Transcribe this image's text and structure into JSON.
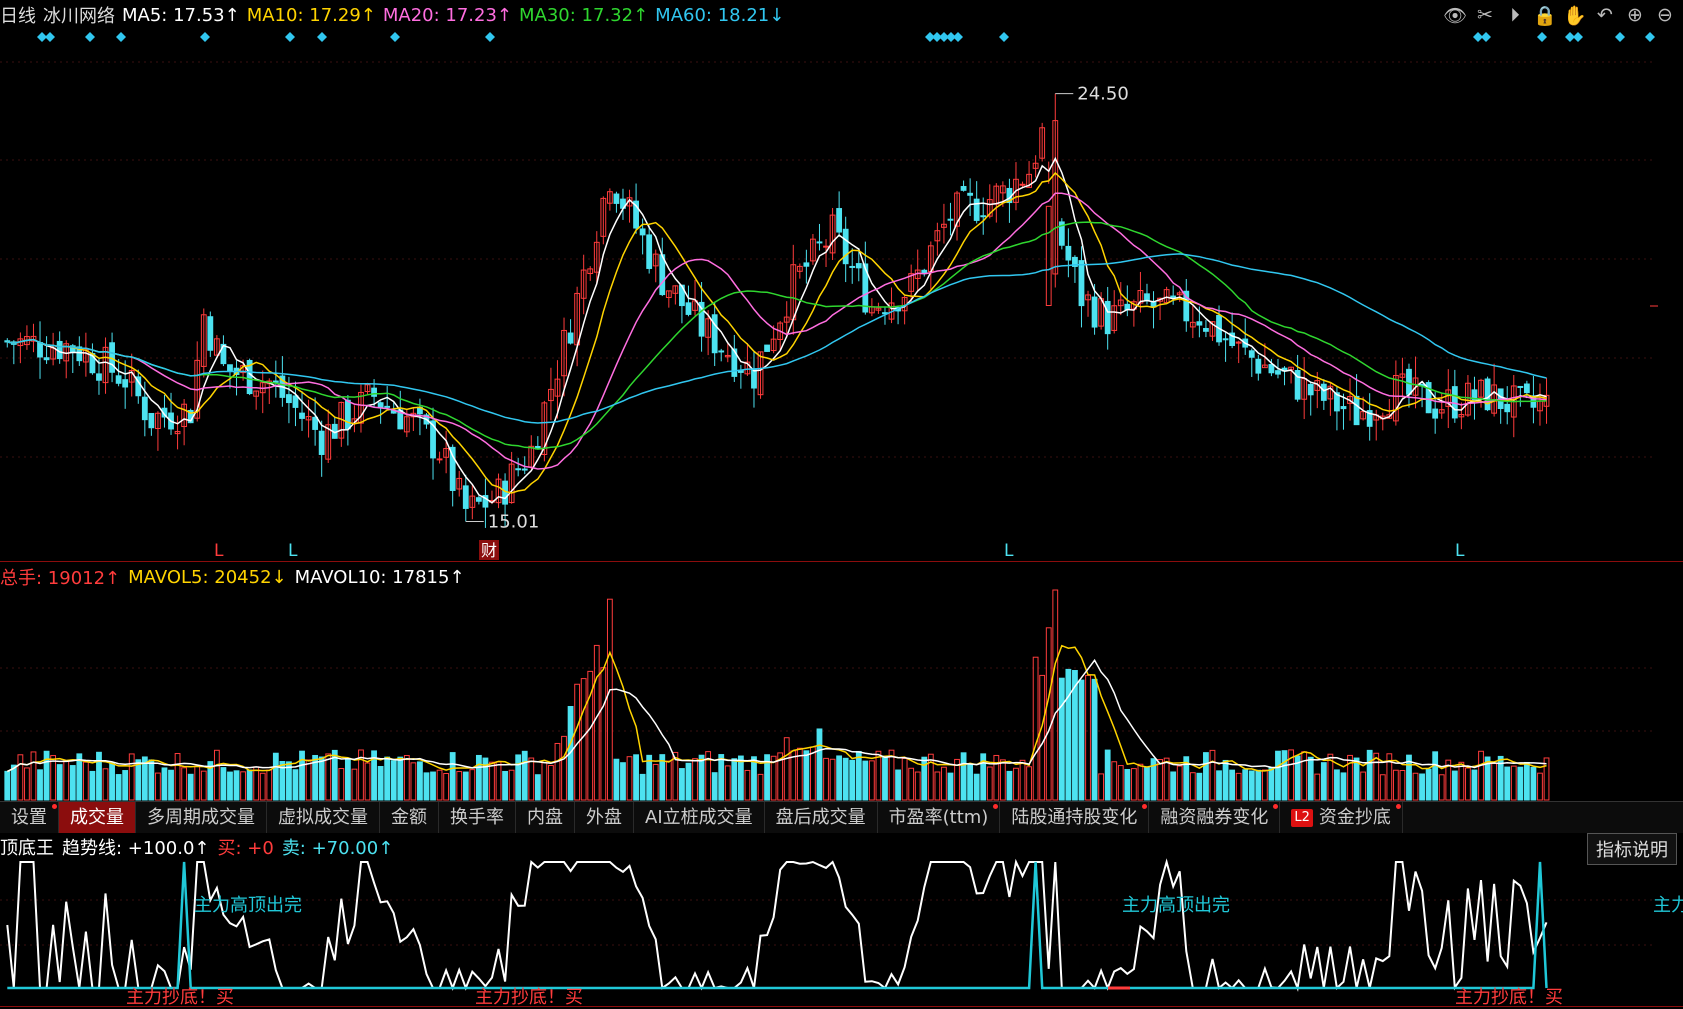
{
  "header": {
    "period": "日线",
    "stock_name": "冰川网络",
    "ma": [
      {
        "label": "MA5: 17.53↑",
        "color": "#ffffff"
      },
      {
        "label": "MA10: 17.29↑",
        "color": "#ffd400"
      },
      {
        "label": "MA20: 17.23↑",
        "color": "#ff6ee0"
      },
      {
        "label": "MA30: 17.32↑",
        "color": "#2fd62f"
      },
      {
        "label": "MA60: 18.21↓",
        "color": "#31c7f0"
      }
    ]
  },
  "toolbar_icons": [
    "eye-icon",
    "scissors-icon",
    "play-icon",
    "lock-icon",
    "hand-icon",
    "undo-icon",
    "zoom-in-icon",
    "zoom-out-icon"
  ],
  "toolbar_glyphs": [
    "👁",
    "✂",
    "⏵",
    "🔒",
    "✋",
    "↶",
    "⊕",
    "⊖"
  ],
  "colors": {
    "up": "#ff3c3c",
    "down": "#4de2f0",
    "panel_border": "#8b0d0d",
    "white": "#ffffff",
    "yellow": "#ffd400"
  },
  "price_chart": {
    "high_label": "24.50",
    "low_label": "15.01",
    "marker_L": "L",
    "marker_cai": "财"
  },
  "volume": {
    "total": "总手: 19012↑",
    "mavol5": "MAVOL5: 20452↓",
    "mavol10": "MAVOL10: 17815↑"
  },
  "tabs": [
    {
      "label": "设置",
      "dot": true,
      "active": false
    },
    {
      "label": "成交量",
      "dot": false,
      "active": true
    },
    {
      "label": "多周期成交量",
      "dot": false,
      "active": false
    },
    {
      "label": "虚拟成交量",
      "dot": false,
      "active": false
    },
    {
      "label": "金额",
      "dot": false,
      "active": false
    },
    {
      "label": "换手率",
      "dot": false,
      "active": false
    },
    {
      "label": "内盘",
      "dot": false,
      "active": false
    },
    {
      "label": "外盘",
      "dot": false,
      "active": false
    },
    {
      "label": "AI立桩成交量",
      "dot": false,
      "active": false
    },
    {
      "label": "盘后成交量",
      "dot": false,
      "active": false
    },
    {
      "label": "市盈率(ttm)",
      "dot": true,
      "active": false
    },
    {
      "label": "陆股通持股变化",
      "dot": true,
      "active": false
    },
    {
      "label": "融资融券变化",
      "dot": true,
      "active": false
    },
    {
      "label": "资金抄底",
      "dot": true,
      "active": false,
      "badge": "L2"
    }
  ],
  "indicator": {
    "name": "顶底王",
    "trend": "趋势线: +100.0↑",
    "buy": "买: +0",
    "sell": "卖: +70.00↑",
    "explain": "指标说明",
    "top_label": "主力高顶出完",
    "top_label_cut": "主力",
    "bottom_label": "主力抄底！买"
  }
}
